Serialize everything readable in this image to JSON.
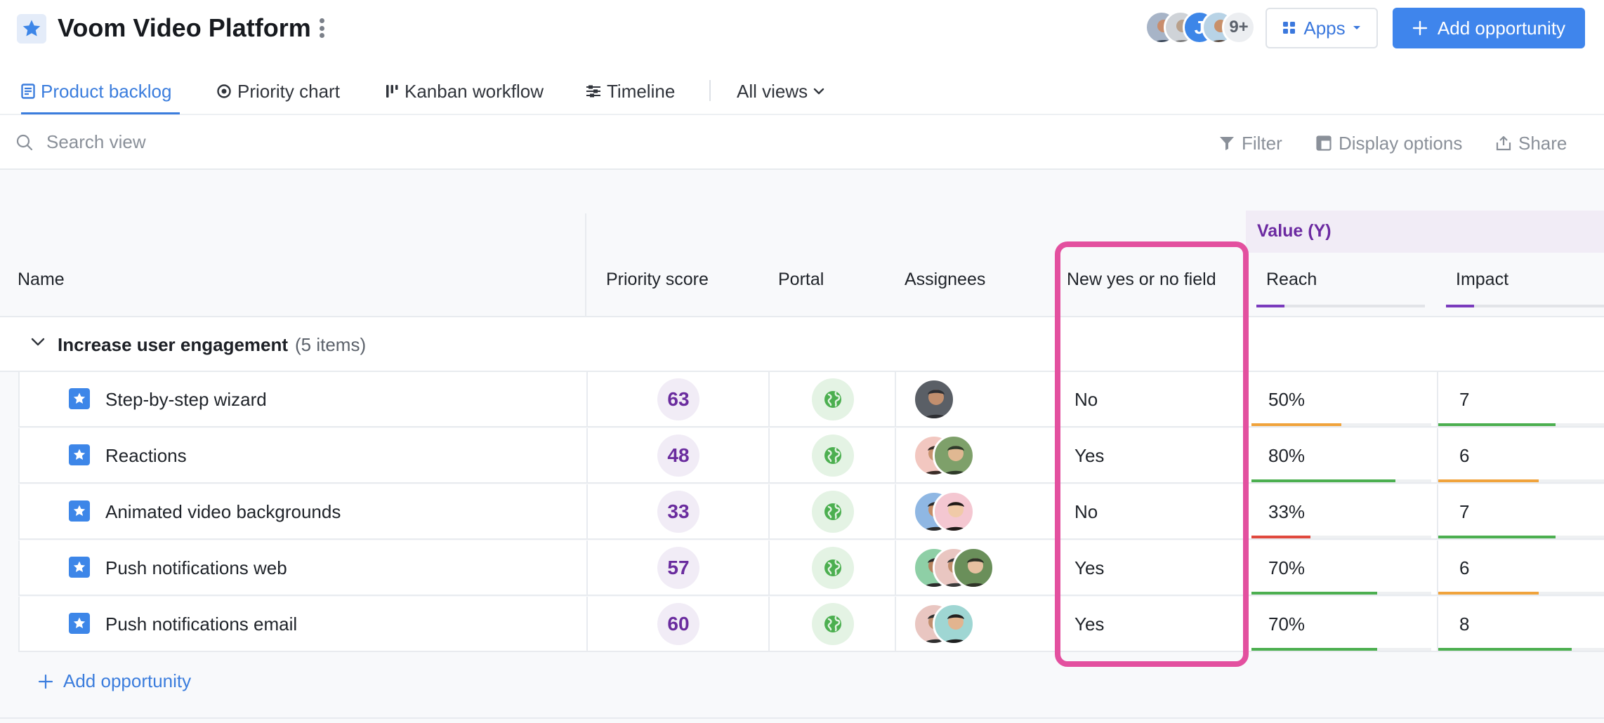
{
  "header": {
    "title": "Voom Video Platform",
    "team_overflow": "9+",
    "apps_label": "Apps",
    "add_opportunity_label": "Add opportunity"
  },
  "tabs": [
    {
      "label": "Product backlog",
      "icon": "list-icon",
      "active": true
    },
    {
      "label": "Priority chart",
      "icon": "target-icon"
    },
    {
      "label": "Kanban workflow",
      "icon": "kanban-icon"
    },
    {
      "label": "Timeline",
      "icon": "timeline-icon"
    }
  ],
  "all_views_label": "All views",
  "toolbar": {
    "search_placeholder": "Search view",
    "filter_label": "Filter",
    "display_options_label": "Display options",
    "share_label": "Share"
  },
  "columns": {
    "value_group": "Value (Y)",
    "name": "Name",
    "priority_score": "Priority score",
    "portal": "Portal",
    "assignees": "Assignees",
    "yes_no": "New yes or no field",
    "reach": "Reach",
    "impact": "Impact"
  },
  "group": {
    "title": "Increase user engagement",
    "count": "(5 items)"
  },
  "rows": [
    {
      "name": "Step-by-step wizard",
      "score": "63",
      "yes_no": "No",
      "reach": "50%",
      "reach_fraction": 0.5,
      "reach_color": "#f0a33c",
      "impact": "7",
      "impact_fraction": 0.7,
      "impact_color": "#4caf50"
    },
    {
      "name": "Reactions",
      "score": "48",
      "yes_no": "Yes",
      "reach": "80%",
      "reach_fraction": 0.8,
      "reach_color": "#4caf50",
      "impact": "6",
      "impact_fraction": 0.6,
      "impact_color": "#f0a33c"
    },
    {
      "name": "Animated video backgrounds",
      "score": "33",
      "yes_no": "No",
      "reach": "33%",
      "reach_fraction": 0.33,
      "reach_color": "#e0493e",
      "impact": "7",
      "impact_fraction": 0.7,
      "impact_color": "#4caf50"
    },
    {
      "name": "Push notifications web",
      "score": "57",
      "yes_no": "Yes",
      "reach": "70%",
      "reach_fraction": 0.7,
      "reach_color": "#4caf50",
      "impact": "6",
      "impact_fraction": 0.6,
      "impact_color": "#f0a33c"
    },
    {
      "name": "Push notifications email",
      "score": "60",
      "yes_no": "Yes",
      "reach": "70%",
      "reach_fraction": 0.7,
      "reach_color": "#4caf50",
      "impact": "8",
      "impact_fraction": 0.8,
      "impact_color": "#4caf50"
    }
  ],
  "add_row_label": "Add opportunity",
  "colors": {
    "accent": "#3f85ec",
    "highlight": "#e3509f",
    "value_purple": "#6c2aa1"
  }
}
